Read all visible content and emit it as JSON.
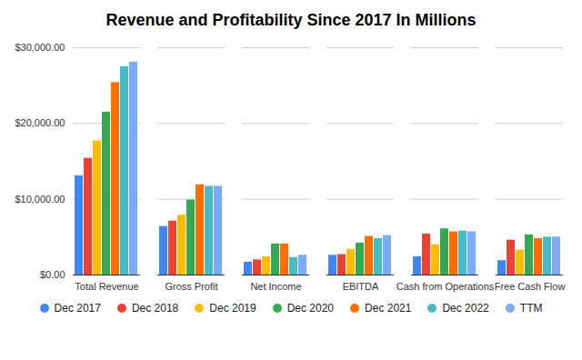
{
  "chart_data": {
    "type": "bar",
    "title": "Revenue and Profitability Since 2017 In Millions",
    "categories": [
      "Total Revenue",
      "Gross Profit",
      "Net Income",
      "EBITDA",
      "Cash from Operations",
      "Free Cash Flow"
    ],
    "series": [
      {
        "name": "Dec 2017",
        "color": "#4285f4",
        "values": [
          13100,
          6400,
          1700,
          2600,
          2400,
          1900
        ]
      },
      {
        "name": "Dec 2018",
        "color": "#ea4335",
        "values": [
          15400,
          7100,
          2000,
          2700,
          5400,
          4600
        ]
      },
      {
        "name": "Dec 2019",
        "color": "#fbbc04",
        "values": [
          17700,
          7900,
          2400,
          3400,
          4000,
          3300
        ]
      },
      {
        "name": "Dec 2020",
        "color": "#34a853",
        "values": [
          21500,
          9900,
          4100,
          4200,
          6100,
          5300
        ]
      },
      {
        "name": "Dec 2021",
        "color": "#ff6d01",
        "values": [
          25400,
          11900,
          4100,
          5100,
          5700,
          4800
        ]
      },
      {
        "name": "Dec 2022",
        "color": "#46bdc6",
        "values": [
          27500,
          11700,
          2300,
          4800,
          5800,
          5000
        ]
      },
      {
        "name": "TTM",
        "color": "#7baaf7",
        "values": [
          28100,
          11700,
          2600,
          5200,
          5700,
          5000
        ]
      }
    ],
    "ylim": [
      0,
      30000
    ],
    "yticks": [
      {
        "value": 0,
        "label": "$0.00"
      },
      {
        "value": 10000,
        "label": "$10,000.00"
      },
      {
        "value": 20000,
        "label": "$20,000.00"
      },
      {
        "value": 30000,
        "label": "$30,000.00"
      }
    ],
    "grid": true,
    "legend": "bottom"
  }
}
